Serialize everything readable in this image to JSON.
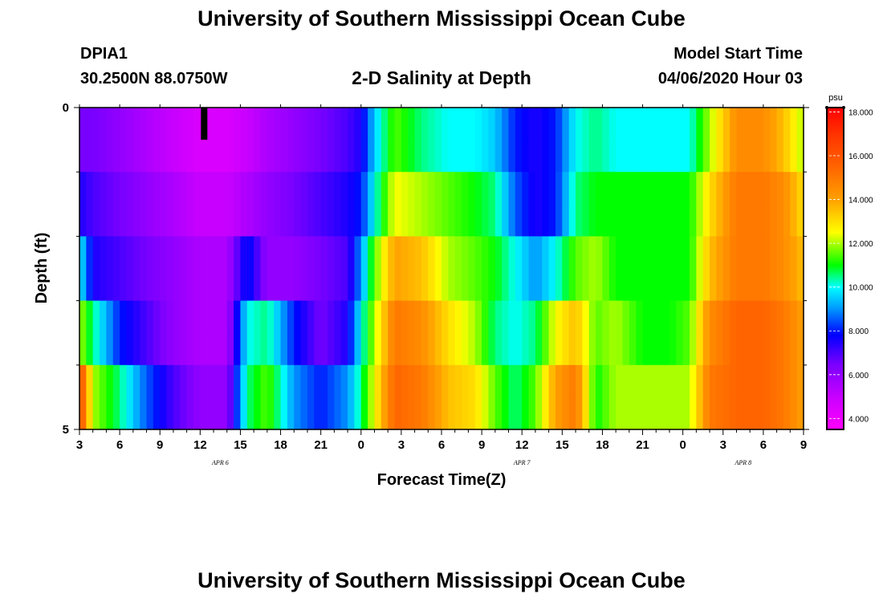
{
  "header": {
    "title": "University of Southern Mississippi Ocean Cube",
    "station_id": "DPIA1",
    "coords": "30.2500N 88.0750W",
    "plot_title": "2-D Salinity at Depth",
    "model_label": "Model Start Time",
    "model_time": "04/06/2020 Hour 03"
  },
  "footer": {
    "title": "University of Southern Mississippi Ocean Cube"
  },
  "chart_data": {
    "type": "heatmap",
    "xlabel": "Forecast Time(Z)",
    "ylabel": "Depth (ft)",
    "x_start_hour": 3,
    "x_range_hours": [
      3,
      57
    ],
    "y_range_ft": [
      0,
      5
    ],
    "y_tick_labels": [
      {
        "value": 0,
        "label": "0"
      },
      {
        "value": 5,
        "label": "5"
      }
    ],
    "x_tick_labels": [
      {
        "hour": 3,
        "label": "3"
      },
      {
        "hour": 6,
        "label": "6"
      },
      {
        "hour": 9,
        "label": "9"
      },
      {
        "hour": 12,
        "label": "12"
      },
      {
        "hour": 15,
        "label": "15"
      },
      {
        "hour": 18,
        "label": "18"
      },
      {
        "hour": 21,
        "label": "21"
      },
      {
        "hour": 24,
        "label": "0"
      },
      {
        "hour": 27,
        "label": "3"
      },
      {
        "hour": 30,
        "label": "6"
      },
      {
        "hour": 33,
        "label": "9"
      },
      {
        "hour": 36,
        "label": "12"
      },
      {
        "hour": 39,
        "label": "15"
      },
      {
        "hour": 42,
        "label": "18"
      },
      {
        "hour": 45,
        "label": "21"
      },
      {
        "hour": 48,
        "label": "0"
      },
      {
        "hour": 51,
        "label": "3"
      },
      {
        "hour": 54,
        "label": "6"
      },
      {
        "hour": 57,
        "label": "9"
      }
    ],
    "date_labels": [
      {
        "hour": 13.5,
        "label": "APR  6"
      },
      {
        "hour": 36,
        "label": "APR  7"
      },
      {
        "hour": 52.5,
        "label": "APR  8"
      }
    ],
    "depth_layers_ft": [
      0.25,
      0.75,
      1.25,
      1.75,
      2.25,
      2.75,
      3.25,
      3.75,
      4.25,
      4.75
    ],
    "time_knots_hours": [
      3,
      4,
      6,
      8,
      10,
      12,
      14,
      15.5,
      17,
      19,
      21,
      23,
      24,
      25,
      26.5,
      28.5,
      30.5,
      32.5,
      34,
      35.5,
      37,
      38.5,
      40,
      41.5,
      43,
      45,
      47,
      48.5,
      50,
      52,
      54,
      55.5,
      57
    ],
    "salinity_psu": [
      [
        6.5,
        6.5,
        6.0,
        5.5,
        5.0,
        4.5,
        4.5,
        5.0,
        5.5,
        6.0,
        6.5,
        7.0,
        7.5,
        9.5,
        11.5,
        10.5,
        10.0,
        10.0,
        9.5,
        8.0,
        7.5,
        8.0,
        10.0,
        10.5,
        10.0,
        10.0,
        10.0,
        10.0,
        12.0,
        14.5,
        14.5,
        13.5,
        12.0
      ],
      [
        6.5,
        6.5,
        6.0,
        5.5,
        5.0,
        4.5,
        4.5,
        5.0,
        5.5,
        6.0,
        6.5,
        7.0,
        7.5,
        9.5,
        11.5,
        10.5,
        10.0,
        10.0,
        9.5,
        8.0,
        7.5,
        8.0,
        10.0,
        10.5,
        10.0,
        10.0,
        10.0,
        10.0,
        12.0,
        14.5,
        14.5,
        13.5,
        12.0
      ],
      [
        7.5,
        7.0,
        6.5,
        6.0,
        5.5,
        5.0,
        5.0,
        5.5,
        6.0,
        6.5,
        7.0,
        7.5,
        8.0,
        10.0,
        12.5,
        12.0,
        11.5,
        11.0,
        10.5,
        8.5,
        7.5,
        8.0,
        10.5,
        11.0,
        11.0,
        11.0,
        11.0,
        11.0,
        13.0,
        15.0,
        15.0,
        14.5,
        13.0
      ],
      [
        7.5,
        7.0,
        6.5,
        6.0,
        5.5,
        5.0,
        5.0,
        5.5,
        6.0,
        6.5,
        7.0,
        7.5,
        8.0,
        10.0,
        12.5,
        12.0,
        11.5,
        11.0,
        10.5,
        8.5,
        7.5,
        8.0,
        10.5,
        11.0,
        11.0,
        11.0,
        11.0,
        11.0,
        13.0,
        15.0,
        15.0,
        14.5,
        13.0
      ],
      [
        10.0,
        7.5,
        7.0,
        6.5,
        6.0,
        5.5,
        5.5,
        8.0,
        6.0,
        6.0,
        6.5,
        7.0,
        9.0,
        11.5,
        14.0,
        13.5,
        12.0,
        11.5,
        11.0,
        10.0,
        9.0,
        10.0,
        11.5,
        12.0,
        11.0,
        11.0,
        11.0,
        11.0,
        13.5,
        15.0,
        15.0,
        14.5,
        13.5
      ],
      [
        10.0,
        7.5,
        7.0,
        6.5,
        6.0,
        5.5,
        5.5,
        8.0,
        6.0,
        6.0,
        6.5,
        7.0,
        9.0,
        11.5,
        14.0,
        13.5,
        12.0,
        11.5,
        11.0,
        10.0,
        9.0,
        10.0,
        11.5,
        12.0,
        11.0,
        11.0,
        11.0,
        11.0,
        13.5,
        15.0,
        15.0,
        14.5,
        13.5
      ],
      [
        12.0,
        10.5,
        8.0,
        7.0,
        6.0,
        5.5,
        5.5,
        10.0,
        10.5,
        8.0,
        6.5,
        7.5,
        10.0,
        12.0,
        15.0,
        14.5,
        13.0,
        12.0,
        10.5,
        10.0,
        10.5,
        12.5,
        13.5,
        11.5,
        12.0,
        11.0,
        11.0,
        11.5,
        14.5,
        15.5,
        15.5,
        15.0,
        14.0
      ],
      [
        12.0,
        10.5,
        8.0,
        7.0,
        6.0,
        5.5,
        5.5,
        10.0,
        10.5,
        8.0,
        6.5,
        7.5,
        10.0,
        12.0,
        15.0,
        14.5,
        13.0,
        12.0,
        10.5,
        10.0,
        10.5,
        12.5,
        13.5,
        11.5,
        12.0,
        11.0,
        11.0,
        11.5,
        14.5,
        15.5,
        15.5,
        15.0,
        14.0
      ],
      [
        16.5,
        12.0,
        10.5,
        8.5,
        7.0,
        6.0,
        6.0,
        10.5,
        11.5,
        9.0,
        8.0,
        9.0,
        10.5,
        12.5,
        15.5,
        15.0,
        13.5,
        13.0,
        11.5,
        10.5,
        11.5,
        14.0,
        15.0,
        11.0,
        12.0,
        12.0,
        12.0,
        12.0,
        15.0,
        15.5,
        15.5,
        15.0,
        14.0
      ],
      [
        16.5,
        12.0,
        10.5,
        8.5,
        7.0,
        6.0,
        6.0,
        10.5,
        11.5,
        9.0,
        8.0,
        9.0,
        10.5,
        12.5,
        15.5,
        15.0,
        13.5,
        13.0,
        11.5,
        10.5,
        11.5,
        14.0,
        15.0,
        11.0,
        12.0,
        12.0,
        12.0,
        12.0,
        15.0,
        15.5,
        15.5,
        15.0,
        14.0
      ]
    ],
    "colorbar": {
      "unit": "psu",
      "range": [
        3.5,
        18.2
      ],
      "tick_labels": [
        {
          "value": 4,
          "label": "4.000"
        },
        {
          "value": 6,
          "label": "6.000"
        },
        {
          "value": 8,
          "label": "8.000"
        },
        {
          "value": 10,
          "label": "10.000"
        },
        {
          "value": 12,
          "label": "12.000"
        },
        {
          "value": 14,
          "label": "14.000"
        },
        {
          "value": 16,
          "label": "16.000"
        },
        {
          "value": 18,
          "label": "18.000"
        }
      ],
      "color_stops": [
        {
          "value": 3.5,
          "color": "#ff00ff"
        },
        {
          "value": 5.0,
          "color": "#c800ff"
        },
        {
          "value": 6.5,
          "color": "#7800ff"
        },
        {
          "value": 7.8,
          "color": "#0000ff"
        },
        {
          "value": 9.0,
          "color": "#0096ff"
        },
        {
          "value": 10.0,
          "color": "#00ffff"
        },
        {
          "value": 11.0,
          "color": "#00ff00"
        },
        {
          "value": 12.5,
          "color": "#ffff00"
        },
        {
          "value": 14.0,
          "color": "#ffa000"
        },
        {
          "value": 15.5,
          "color": "#ff6400"
        },
        {
          "value": 17.0,
          "color": "#ff3200"
        },
        {
          "value": 18.2,
          "color": "#ff0000"
        }
      ]
    },
    "missing_marker": {
      "hour": 12.3,
      "depth_ft": [
        0,
        0.5
      ],
      "color": "#000000"
    }
  }
}
